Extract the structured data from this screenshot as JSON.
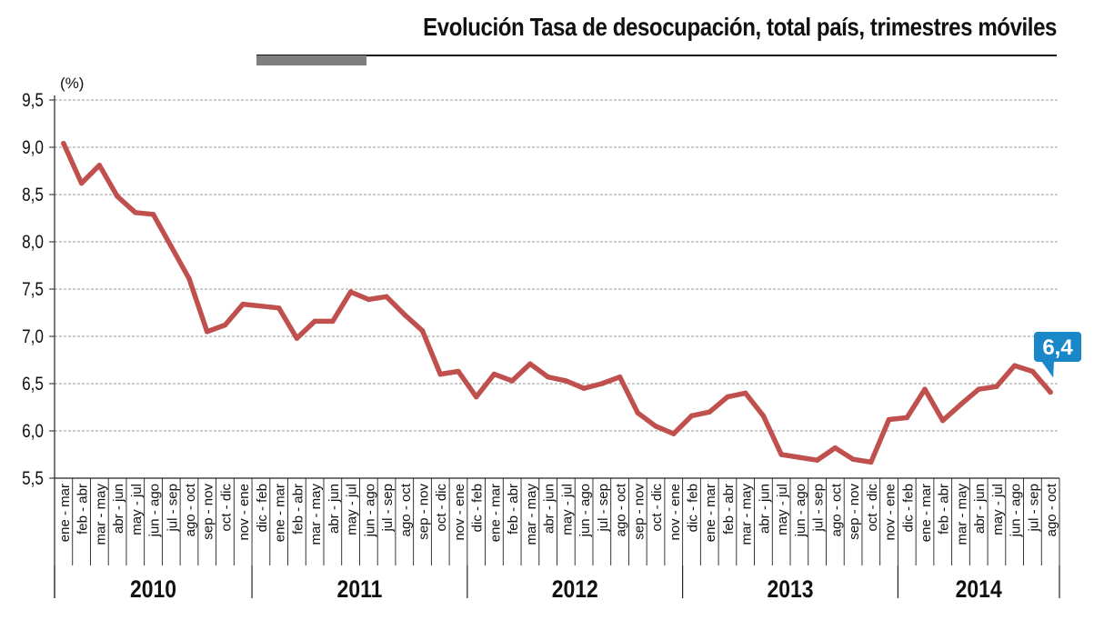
{
  "title": "Evolución Tasa de desocupación, total país, trimestres móviles",
  "colors": {
    "line": "#c0504d",
    "callout": "#1a87c8",
    "grid": "#9a9a9a",
    "axis": "#222222",
    "title_accent": "#7f7f7f"
  },
  "chart_data": {
    "type": "line",
    "title": "Evolución Tasa de desocupación, total país, trimestres móviles",
    "ylabel": "(%)",
    "xlabel": "",
    "ylim": [
      5.5,
      9.5
    ],
    "yticks": [
      "5,5",
      "6,0",
      "6,5",
      "7,0",
      "7,5",
      "8,0",
      "8,5",
      "9,0",
      "9,5"
    ],
    "grid": true,
    "categories": [
      "ene - mar",
      "feb - abr",
      "mar - may",
      "abr - jun",
      "may - jul",
      "jun - ago",
      "jul - sep",
      "ago - oct",
      "sep - nov",
      "oct - dic",
      "nov - ene",
      "dic - feb",
      "ene - mar",
      "feb - abr",
      "mar - may",
      "abr - jun",
      "may - jul",
      "jun - ago",
      "jul - sep",
      "ago - oct",
      "sep - nov",
      "oct - dic",
      "nov - ene",
      "dic - feb",
      "ene - mar",
      "feb - abr",
      "mar - may",
      "abr - jun",
      "may - jul",
      "jun - ago",
      "jul - sep",
      "ago - oct",
      "sep - nov",
      "oct - dic",
      "nov - ene",
      "dic - feb",
      "ene - mar",
      "feb - abr",
      "mar - may",
      "abr - jun",
      "may - jul",
      "jun - ago",
      "jul - sep",
      "ago - oct",
      "sep - nov",
      "oct - dic",
      "nov - ene",
      "dic - feb",
      "ene - mar",
      "feb - abr",
      "mar - may",
      "abr - jun",
      "may - jul",
      "jun - ago",
      "jul - sep",
      "ago - oct"
    ],
    "years": [
      {
        "label": "2010",
        "start": 0,
        "count": 11
      },
      {
        "label": "2011",
        "start": 11,
        "count": 12
      },
      {
        "label": "2012",
        "start": 23,
        "count": 12
      },
      {
        "label": "2013",
        "start": 35,
        "count": 12
      },
      {
        "label": "2014",
        "start": 47,
        "count": 9
      }
    ],
    "series": [
      {
        "values": [
          9.04,
          8.62,
          8.81,
          8.48,
          8.31,
          8.29,
          7.95,
          7.61,
          7.05,
          7.12,
          7.34,
          7.32,
          7.3,
          6.98,
          7.16,
          7.16,
          7.47,
          7.39,
          7.42,
          7.23,
          7.06,
          6.6,
          6.63,
          6.36,
          6.6,
          6.53,
          6.71,
          6.57,
          6.53,
          6.45,
          6.5,
          6.57,
          6.19,
          6.05,
          5.97,
          6.16,
          6.2,
          6.36,
          6.4,
          6.16,
          5.75,
          5.72,
          5.69,
          5.82,
          5.7,
          5.67,
          6.12,
          6.14,
          6.44,
          6.11,
          6.28,
          6.44,
          6.47,
          6.69,
          6.63,
          6.41
        ]
      }
    ],
    "callout": {
      "label": "6,4",
      "index": 55
    }
  }
}
